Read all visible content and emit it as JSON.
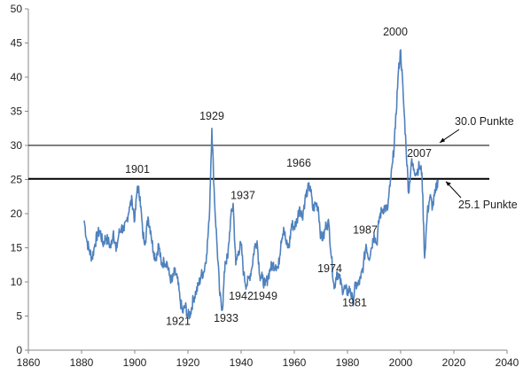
{
  "chart_data": {
    "type": "line",
    "title": "",
    "xlabel": "",
    "ylabel": "",
    "xlim": [
      1860,
      2040
    ],
    "ylim": [
      0,
      50
    ],
    "x_ticks": [
      1860,
      1880,
      1900,
      1920,
      1940,
      1960,
      1980,
      2000,
      2020,
      2040
    ],
    "y_ticks": [
      0,
      5,
      10,
      15,
      20,
      25,
      30,
      35,
      40,
      45,
      50
    ],
    "grid": false,
    "legend": "none",
    "line_color": "#4f81bd",
    "series": [
      {
        "points": [
          [
            1881,
            19.0
          ],
          [
            1882,
            16.0
          ],
          [
            1883,
            14.5
          ],
          [
            1884,
            13.5
          ],
          [
            1885,
            15.5
          ],
          [
            1886,
            17.0
          ],
          [
            1887,
            17.5
          ],
          [
            1888,
            15.5
          ],
          [
            1889,
            16.5
          ],
          [
            1890,
            16.0
          ],
          [
            1891,
            15.0
          ],
          [
            1892,
            17.5
          ],
          [
            1893,
            14.5
          ],
          [
            1894,
            17.0
          ],
          [
            1895,
            18.0
          ],
          [
            1896,
            17.5
          ],
          [
            1897,
            19.0
          ],
          [
            1898,
            21.0
          ],
          [
            1899,
            22.0
          ],
          [
            1900,
            19.0
          ],
          [
            1901,
            24.0
          ],
          [
            1902,
            22.5
          ],
          [
            1903,
            17.0
          ],
          [
            1904,
            16.0
          ],
          [
            1905,
            19.5
          ],
          [
            1906,
            17.5
          ],
          [
            1907,
            14.5
          ],
          [
            1908,
            13.5
          ],
          [
            1909,
            15.5
          ],
          [
            1910,
            12.5
          ],
          [
            1911,
            13.0
          ],
          [
            1912,
            13.0
          ],
          [
            1913,
            11.0
          ],
          [
            1914,
            10.0
          ],
          [
            1915,
            11.5
          ],
          [
            1916,
            10.5
          ],
          [
            1917,
            7.5
          ],
          [
            1918,
            5.5
          ],
          [
            1919,
            6.5
          ],
          [
            1920,
            5.0
          ],
          [
            1921,
            5.5
          ],
          [
            1922,
            7.5
          ],
          [
            1923,
            8.5
          ],
          [
            1924,
            9.5
          ],
          [
            1925,
            11.0
          ],
          [
            1926,
            11.5
          ],
          [
            1927,
            14.0
          ],
          [
            1928,
            19.0
          ],
          [
            1929,
            32.5
          ],
          [
            1930,
            22.0
          ],
          [
            1931,
            15.0
          ],
          [
            1932,
            8.0
          ],
          [
            1933,
            6.0
          ],
          [
            1934,
            13.0
          ],
          [
            1935,
            13.5
          ],
          [
            1936,
            19.0
          ],
          [
            1937,
            21.5
          ],
          [
            1938,
            12.5
          ],
          [
            1939,
            14.5
          ],
          [
            1940,
            15.5
          ],
          [
            1941,
            11.0
          ],
          [
            1942,
            9.5
          ],
          [
            1943,
            10.5
          ],
          [
            1944,
            12.0
          ],
          [
            1945,
            15.0
          ],
          [
            1946,
            16.0
          ],
          [
            1947,
            11.0
          ],
          [
            1948,
            10.5
          ],
          [
            1949,
            9.5
          ],
          [
            1950,
            10.5
          ],
          [
            1951,
            12.0
          ],
          [
            1952,
            12.5
          ],
          [
            1953,
            12.5
          ],
          [
            1954,
            12.0
          ],
          [
            1955,
            16.0
          ],
          [
            1956,
            18.0
          ],
          [
            1957,
            15.5
          ],
          [
            1958,
            15.0
          ],
          [
            1959,
            18.5
          ],
          [
            1960,
            18.0
          ],
          [
            1961,
            19.0
          ],
          [
            1962,
            21.0
          ],
          [
            1963,
            19.5
          ],
          [
            1964,
            22.0
          ],
          [
            1965,
            23.5
          ],
          [
            1966,
            24.0
          ],
          [
            1967,
            20.5
          ],
          [
            1968,
            21.5
          ],
          [
            1969,
            21.0
          ],
          [
            1970,
            16.5
          ],
          [
            1971,
            16.5
          ],
          [
            1972,
            18.5
          ],
          [
            1973,
            18.5
          ],
          [
            1974,
            13.5
          ],
          [
            1975,
            9.0
          ],
          [
            1976,
            11.5
          ],
          [
            1977,
            10.5
          ],
          [
            1978,
            9.0
          ],
          [
            1979,
            9.0
          ],
          [
            1980,
            8.5
          ],
          [
            1981,
            9.0
          ],
          [
            1982,
            7.0
          ],
          [
            1983,
            9.5
          ],
          [
            1984,
            9.5
          ],
          [
            1985,
            10.5
          ],
          [
            1986,
            12.5
          ],
          [
            1987,
            15.5
          ],
          [
            1988,
            13.5
          ],
          [
            1989,
            15.0
          ],
          [
            1990,
            17.0
          ],
          [
            1991,
            15.5
          ],
          [
            1992,
            19.5
          ],
          [
            1993,
            20.5
          ],
          [
            1994,
            21.0
          ],
          [
            1995,
            20.5
          ],
          [
            1996,
            24.0
          ],
          [
            1997,
            27.5
          ],
          [
            1998,
            32.5
          ],
          [
            1999,
            40.0
          ],
          [
            2000,
            44.0
          ],
          [
            2001,
            37.0
          ],
          [
            2002,
            30.0
          ],
          [
            2003,
            23.0
          ],
          [
            2004,
            27.5
          ],
          [
            2005,
            26.5
          ],
          [
            2006,
            26.0
          ],
          [
            2007,
            27.0
          ],
          [
            2008,
            26.0
          ],
          [
            2009,
            13.5
          ],
          [
            2010,
            20.0
          ],
          [
            2011,
            22.5
          ],
          [
            2012,
            21.0
          ],
          [
            2013,
            23.0
          ],
          [
            2014,
            25.0
          ]
        ]
      }
    ],
    "reference_lines": [
      {
        "y": 30.0,
        "label": "30.0 Punkte"
      },
      {
        "y": 25.1,
        "label": "25.1 Punkte"
      }
    ],
    "annotations": [
      {
        "text": "1901",
        "x": 1901,
        "y": 24.0
      },
      {
        "text": "1921",
        "x": 1921,
        "y": 5.5
      },
      {
        "text": "1929",
        "x": 1929,
        "y": 32.5
      },
      {
        "text": "1933",
        "x": 1933,
        "y": 6.0
      },
      {
        "text": "1937",
        "x": 1937,
        "y": 21.5
      },
      {
        "text": "1942",
        "x": 1942,
        "y": 9.5
      },
      {
        "text": "1949",
        "x": 1949,
        "y": 9.5
      },
      {
        "text": "1966",
        "x": 1966,
        "y": 24.0
      },
      {
        "text": "1974",
        "x": 1974,
        "y": 13.5
      },
      {
        "text": "1981",
        "x": 1981,
        "y": 9.0
      },
      {
        "text": "1987",
        "x": 1987,
        "y": 15.5
      },
      {
        "text": "2000",
        "x": 2000,
        "y": 44.0
      },
      {
        "text": "2007",
        "x": 2007,
        "y": 27.0
      }
    ]
  }
}
